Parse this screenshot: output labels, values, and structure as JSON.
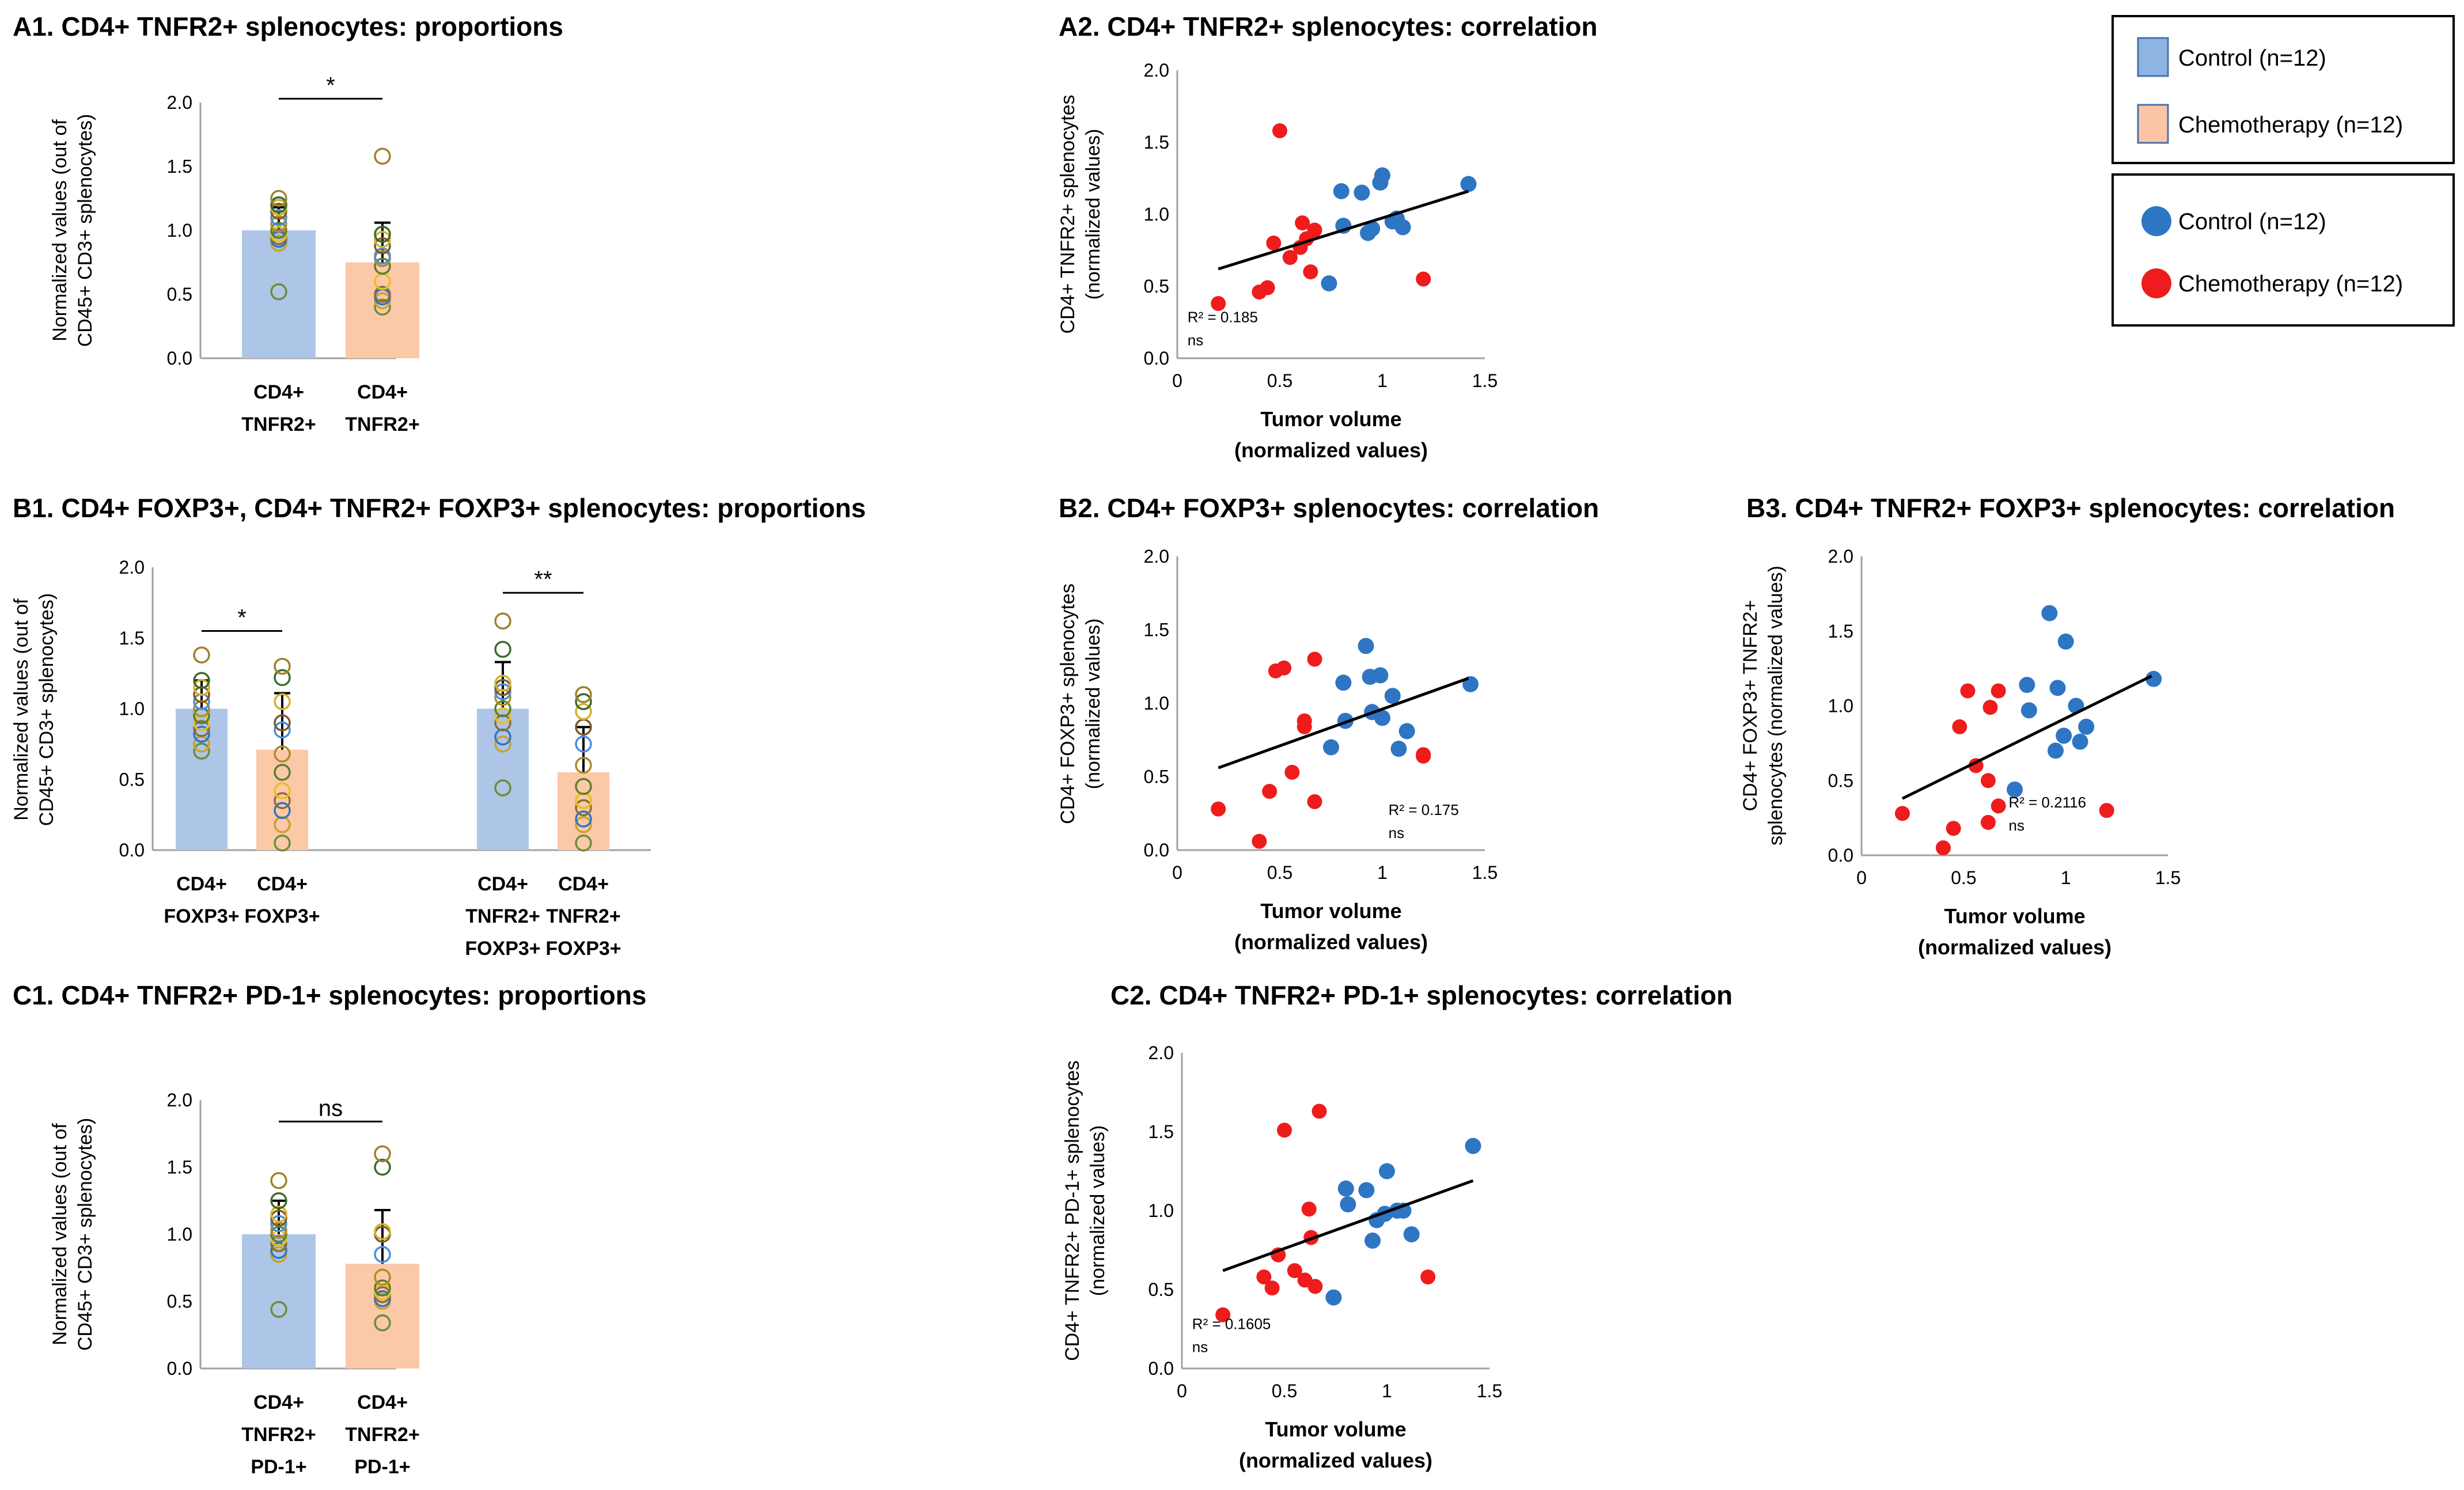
{
  "colors": {
    "control_bar": "#adc5e7",
    "chemo_bar": "#fbc8a8",
    "control_dot": "#2e75c4",
    "chemo_dot": "#ee1c1c",
    "axis": "#a0a0a0"
  },
  "legend_bars": [
    {
      "label": "Control (n=12)",
      "color": "#8eb4e3"
    },
    {
      "label": "Chemotherapy (n=12)",
      "color": "#fbc5a5"
    }
  ],
  "legend_dots": [
    {
      "label": "Control (n=12)",
      "color": "#2e75c4"
    },
    {
      "label": "Chemotherapy (n=12)",
      "color": "#ee1c1c"
    }
  ],
  "chart_data": [
    {
      "id": "A1",
      "type": "bar",
      "title": "A1. CD4+ TNFR2+ splenocytes: proportions",
      "ylabel": [
        "Normalized values (out of",
        "CD45+ CD3+ splenocytes)"
      ],
      "ylim": [
        0,
        2
      ],
      "yticks": [
        "0.0",
        "0.5",
        "1.0",
        "1.5",
        "2.0"
      ],
      "groups": [
        {
          "labels": [
            "CD4+",
            "TNFR2+"
          ],
          "group": "Control",
          "value": 1.0,
          "error": 0.18,
          "points": [
            0.52,
            0.9,
            0.93,
            0.95,
            0.97,
            1.0,
            1.05,
            1.1,
            1.15,
            1.18,
            1.2,
            1.25
          ]
        },
        {
          "labels": [
            "CD4+",
            "TNFR2+"
          ],
          "group": "Chemotherapy",
          "value": 0.75,
          "error": 0.31,
          "points": [
            0.4,
            0.45,
            0.48,
            0.5,
            0.6,
            0.72,
            0.78,
            0.8,
            0.88,
            0.93,
            0.97,
            1.58
          ]
        }
      ],
      "brackets": [
        {
          "from": 0,
          "to": 1,
          "label": "*",
          "y": 2.03
        }
      ]
    },
    {
      "id": "A2",
      "type": "scatter",
      "title": "A2. CD4+ TNFR2+ splenocytes: correlation",
      "ylabel": [
        "CD4+ TNFR2+ splenocytes",
        "(normalized values)"
      ],
      "xlabel": [
        "Tumor volume",
        "(normalized values)"
      ],
      "xlim": [
        0,
        1.5
      ],
      "ylim": [
        0,
        2
      ],
      "xticks": [
        "0",
        "0.5",
        "1",
        "1.5"
      ],
      "yticks": [
        "0.0",
        "0.5",
        "1.0",
        "1.5",
        "2.0"
      ],
      "r2": "R² = 0.185",
      "sig": "ns",
      "trend": [
        [
          0.2,
          0.62
        ],
        [
          1.42,
          1.16
        ]
      ],
      "control": [
        [
          0.74,
          0.52
        ],
        [
          0.8,
          1.16
        ],
        [
          0.81,
          0.92
        ],
        [
          0.9,
          1.15
        ],
        [
          0.93,
          0.87
        ],
        [
          0.95,
          0.9
        ],
        [
          0.99,
          1.22
        ],
        [
          1.0,
          1.27
        ],
        [
          1.05,
          0.95
        ],
        [
          1.07,
          0.97
        ],
        [
          1.1,
          0.91
        ],
        [
          1.42,
          1.21
        ]
      ],
      "chemo": [
        [
          0.2,
          0.38
        ],
        [
          0.4,
          0.46
        ],
        [
          0.44,
          0.49
        ],
        [
          0.47,
          0.8
        ],
        [
          0.5,
          1.58
        ],
        [
          0.55,
          0.7
        ],
        [
          0.6,
          0.77
        ],
        [
          0.61,
          0.94
        ],
        [
          0.63,
          0.83
        ],
        [
          0.65,
          0.6
        ],
        [
          0.67,
          0.89
        ],
        [
          1.2,
          0.55
        ]
      ]
    },
    {
      "id": "B1",
      "type": "bar",
      "title": "B1. CD4+ FOXP3+, CD4+ TNFR2+ FOXP3+ splenocytes: proportions",
      "ylabel": [
        "Normalized values (out of",
        "CD45+ CD3+ splenocytes)"
      ],
      "ylim": [
        0,
        2
      ],
      "yticks": [
        "0.0",
        "0.5",
        "1.0",
        "1.5",
        "2.0"
      ],
      "groups": [
        {
          "labels": [
            "CD4+",
            "FOXP3+"
          ],
          "group": "Control",
          "value": 1.0,
          "error": 0.2,
          "points": [
            0.7,
            0.75,
            0.82,
            0.86,
            0.9,
            0.95,
            1.0,
            1.05,
            1.1,
            1.15,
            1.2,
            1.38
          ]
        },
        {
          "labels": [
            "CD4+",
            "FOXP3+"
          ],
          "group": "Chemotherapy",
          "value": 0.71,
          "error": 0.4,
          "points": [
            0.05,
            0.18,
            0.28,
            0.35,
            0.42,
            0.55,
            0.68,
            0.85,
            0.9,
            1.05,
            1.22,
            1.3
          ]
        },
        {
          "labels": [
            "CD4+",
            "TNFR2+",
            "FOXP3+"
          ],
          "group": "Control",
          "value": 1.0,
          "error": 0.33,
          "points": [
            0.44,
            0.75,
            0.8,
            0.9,
            0.95,
            1.0,
            1.08,
            1.12,
            1.15,
            1.18,
            1.42,
            1.62
          ]
        },
        {
          "labels": [
            "CD4+",
            "TNFR2+",
            "FOXP3+"
          ],
          "group": "Chemotherapy",
          "value": 0.55,
          "error": 0.32,
          "points": [
            0.05,
            0.18,
            0.22,
            0.3,
            0.35,
            0.45,
            0.6,
            0.75,
            0.87,
            0.98,
            1.05,
            1.1
          ]
        }
      ],
      "brackets": [
        {
          "from": 0,
          "to": 1,
          "label": "*",
          "y": 1.55
        },
        {
          "from": 2,
          "to": 3,
          "label": "**",
          "y": 1.82
        }
      ]
    },
    {
      "id": "B2",
      "type": "scatter",
      "title": "B2. CD4+ FOXP3+ splenocytes: correlation",
      "ylabel": [
        "CD4+ FOXP3+ splenocytes",
        "(normalized values)"
      ],
      "xlabel": [
        "Tumor volume",
        "(normalized values)"
      ],
      "xlim": [
        0,
        1.5
      ],
      "ylim": [
        0,
        2
      ],
      "xticks": [
        "0",
        "0.5",
        "1",
        "1.5"
      ],
      "yticks": [
        "0.0",
        "0.5",
        "1.0",
        "1.5",
        "2.0"
      ],
      "r2": "R² = 0.175",
      "sig": "ns",
      "trend": [
        [
          0.2,
          0.56
        ],
        [
          1.42,
          1.17
        ]
      ],
      "control": [
        [
          0.75,
          0.7
        ],
        [
          0.81,
          1.14
        ],
        [
          0.82,
          0.88
        ],
        [
          0.92,
          1.39
        ],
        [
          0.94,
          1.18
        ],
        [
          0.95,
          0.94
        ],
        [
          0.99,
          1.19
        ],
        [
          1.0,
          0.9
        ],
        [
          1.05,
          1.05
        ],
        [
          1.08,
          0.69
        ],
        [
          1.12,
          0.81
        ],
        [
          1.43,
          1.13
        ]
      ],
      "chemo": [
        [
          0.2,
          0.28
        ],
        [
          0.4,
          0.06
        ],
        [
          0.45,
          0.4
        ],
        [
          0.48,
          1.22
        ],
        [
          0.52,
          1.24
        ],
        [
          0.56,
          0.53
        ],
        [
          0.62,
          0.84
        ],
        [
          0.62,
          0.88
        ],
        [
          0.67,
          0.33
        ],
        [
          0.67,
          1.3
        ],
        [
          1.2,
          0.65
        ],
        [
          1.2,
          0.64
        ]
      ]
    },
    {
      "id": "B3",
      "type": "scatter",
      "title": "B3. CD4+ TNFR2+ FOXP3+ splenocytes: correlation",
      "ylabel": [
        "CD4+ FOXP3+ TNFR2+",
        "splenocytes (normalized values)"
      ],
      "xlabel": [
        "Tumor volume",
        "(normalized values)"
      ],
      "xlim": [
        0,
        1.5
      ],
      "ylim": [
        0,
        2
      ],
      "xticks": [
        "0",
        "0.5",
        "1",
        "1.5"
      ],
      "yticks": [
        "0.0",
        "0.5",
        "1.0",
        "1.5",
        "2.0"
      ],
      "r2": "R² = 0.2116",
      "sig": "ns",
      "trend": [
        [
          0.2,
          0.38
        ],
        [
          1.42,
          1.2
        ]
      ],
      "control": [
        [
          0.75,
          0.44
        ],
        [
          0.81,
          1.14
        ],
        [
          0.82,
          0.97
        ],
        [
          0.92,
          1.62
        ],
        [
          0.95,
          0.7
        ],
        [
          0.96,
          1.12
        ],
        [
          0.99,
          0.8
        ],
        [
          1.0,
          1.43
        ],
        [
          1.05,
          1.0
        ],
        [
          1.07,
          0.76
        ],
        [
          1.1,
          0.86
        ],
        [
          1.43,
          1.18
        ]
      ],
      "chemo": [
        [
          0.2,
          0.28
        ],
        [
          0.4,
          0.05
        ],
        [
          0.45,
          0.18
        ],
        [
          0.48,
          0.86
        ],
        [
          0.52,
          1.1
        ],
        [
          0.56,
          0.6
        ],
        [
          0.62,
          0.5
        ],
        [
          0.62,
          0.22
        ],
        [
          0.63,
          0.99
        ],
        [
          0.67,
          0.33
        ],
        [
          0.67,
          1.1
        ],
        [
          1.2,
          0.3
        ]
      ]
    },
    {
      "id": "C1",
      "type": "bar",
      "title": "C1. CD4+ TNFR2+ PD-1+ splenocytes: proportions",
      "ylabel": [
        "Normalized values (out of",
        "CD45+ CD3+ splenocytes)"
      ],
      "ylim": [
        0,
        2
      ],
      "yticks": [
        "0.0",
        "0.5",
        "1.0",
        "1.5",
        "2.0"
      ],
      "groups": [
        {
          "labels": [
            "CD4+",
            "TNFR2+",
            "PD-1+"
          ],
          "group": "Control",
          "value": 1.0,
          "error": 0.25,
          "points": [
            0.44,
            0.85,
            0.88,
            0.93,
            0.97,
            1.0,
            1.03,
            1.08,
            1.12,
            1.15,
            1.25,
            1.4
          ]
        },
        {
          "labels": [
            "CD4+",
            "TNFR2+",
            "PD-1+"
          ],
          "group": "Chemotherapy",
          "value": 0.78,
          "error": 0.4,
          "points": [
            0.34,
            0.5,
            0.52,
            0.55,
            0.57,
            0.6,
            0.68,
            0.85,
            1.0,
            1.02,
            1.5,
            1.6
          ]
        }
      ],
      "brackets": [
        {
          "from": 0,
          "to": 1,
          "label": "ns",
          "y": 1.84
        }
      ]
    },
    {
      "id": "C2",
      "type": "scatter",
      "title": "C2. CD4+ TNFR2+ PD-1+ splenocytes: correlation",
      "ylabel": [
        "CD4+ TNFR2+ PD-1+ splenocytes",
        "(normalized values)"
      ],
      "xlabel": [
        "Tumor volume",
        "(normalized values)"
      ],
      "xlim": [
        0,
        1.5
      ],
      "ylim": [
        0,
        2
      ],
      "xticks": [
        "0",
        "0.5",
        "1",
        "1.5"
      ],
      "yticks": [
        "0.0",
        "0.5",
        "1.0",
        "1.5",
        "2.0"
      ],
      "r2": "R² = 0.1605",
      "sig": "ns",
      "trend": [
        [
          0.2,
          0.62
        ],
        [
          1.42,
          1.19
        ]
      ],
      "control": [
        [
          0.74,
          0.45
        ],
        [
          0.8,
          1.14
        ],
        [
          0.81,
          1.04
        ],
        [
          0.9,
          1.13
        ],
        [
          0.93,
          0.81
        ],
        [
          0.95,
          0.94
        ],
        [
          0.99,
          0.98
        ],
        [
          1.0,
          1.25
        ],
        [
          1.05,
          1.0
        ],
        [
          1.08,
          1.0
        ],
        [
          1.12,
          0.85
        ],
        [
          1.42,
          1.41
        ]
      ],
      "chemo": [
        [
          0.2,
          0.34
        ],
        [
          0.4,
          0.58
        ],
        [
          0.44,
          0.51
        ],
        [
          0.47,
          0.72
        ],
        [
          0.5,
          1.51
        ],
        [
          0.55,
          0.62
        ],
        [
          0.6,
          0.56
        ],
        [
          0.62,
          1.01
        ],
        [
          0.63,
          0.83
        ],
        [
          0.65,
          0.52
        ],
        [
          0.67,
          1.63
        ],
        [
          1.2,
          0.58
        ]
      ]
    }
  ]
}
